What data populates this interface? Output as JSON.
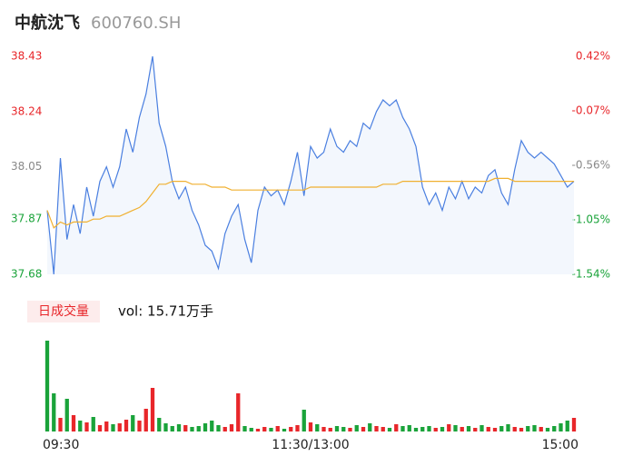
{
  "chart_data": {
    "type": "line",
    "title": "中航沈飞",
    "subtitle": "600760.SH",
    "xlabels": [
      "09:30",
      "11:30/13:00",
      "15:00"
    ],
    "ylim": [
      37.68,
      38.43
    ],
    "yticks": [
      38.43,
      38.24,
      38.05,
      37.87,
      37.68
    ],
    "y2lim": [
      -1.54,
      0.42
    ],
    "y2ticks": [
      {
        "value": 0.42,
        "label": "0.42%"
      },
      {
        "value": -0.07,
        "label": "-0.07%"
      },
      {
        "value": -0.56,
        "label": "-0.56%"
      },
      {
        "value": -1.05,
        "label": "-1.05%"
      },
      {
        "value": -1.54,
        "label": "-1.54%"
      }
    ],
    "tick_colors": [
      "#e8262a",
      "#e8262a",
      "#888888",
      "#1aa33a",
      "#1aa33a"
    ],
    "up_color": "#e8262a",
    "down_color": "#1aa33a",
    "series": [
      {
        "name": "price",
        "color": "#4a7fe0",
        "values": [
          37.9,
          37.68,
          38.08,
          37.8,
          37.92,
          37.82,
          37.98,
          37.88,
          38.0,
          38.05,
          37.98,
          38.05,
          38.18,
          38.1,
          38.22,
          38.3,
          38.43,
          38.2,
          38.12,
          38.0,
          37.94,
          37.98,
          37.9,
          37.85,
          37.78,
          37.76,
          37.7,
          37.82,
          37.88,
          37.92,
          37.8,
          37.72,
          37.9,
          37.98,
          37.95,
          37.97,
          37.92,
          38.0,
          38.1,
          37.95,
          38.12,
          38.08,
          38.1,
          38.18,
          38.12,
          38.1,
          38.14,
          38.12,
          38.2,
          38.18,
          38.24,
          38.28,
          38.26,
          38.28,
          38.22,
          38.18,
          38.12,
          37.98,
          37.92,
          37.96,
          37.9,
          37.98,
          37.94,
          38.0,
          37.94,
          37.98,
          37.96,
          38.02,
          38.04,
          37.96,
          37.92,
          38.04,
          38.14,
          38.1,
          38.08,
          38.1,
          38.08,
          38.06,
          38.02,
          37.98,
          38.0
        ]
      },
      {
        "name": "avg",
        "color": "#f0b030",
        "values": [
          37.9,
          37.84,
          37.86,
          37.85,
          37.86,
          37.86,
          37.86,
          37.87,
          37.87,
          37.88,
          37.88,
          37.88,
          37.89,
          37.9,
          37.91,
          37.93,
          37.96,
          37.99,
          37.99,
          38.0,
          38.0,
          38.0,
          37.99,
          37.99,
          37.99,
          37.98,
          37.98,
          37.98,
          37.97,
          37.97,
          37.97,
          37.97,
          37.97,
          37.97,
          37.97,
          37.97,
          37.97,
          37.97,
          37.97,
          37.97,
          37.98,
          37.98,
          37.98,
          37.98,
          37.98,
          37.98,
          37.98,
          37.98,
          37.98,
          37.98,
          37.98,
          37.99,
          37.99,
          37.99,
          38.0,
          38.0,
          38.0,
          38.0,
          38.0,
          38.0,
          38.0,
          38.0,
          38.0,
          38.0,
          38.0,
          38.0,
          38.0,
          38.0,
          38.01,
          38.01,
          38.01,
          38.0,
          38.0,
          38.0,
          38.0,
          38.0,
          38.0,
          38.0,
          38.0,
          38.0,
          38.0
        ]
      }
    ],
    "volume": {
      "legend": "日成交量",
      "label": "vol: 15.71万手",
      "ylim": [
        0,
        10500
      ],
      "values": [
        10000,
        4200,
        1500,
        3600,
        1800,
        1200,
        1000,
        1600,
        700,
        1100,
        800,
        900,
        1300,
        1800,
        1200,
        2500,
        4800,
        1500,
        900,
        600,
        800,
        700,
        500,
        600,
        900,
        1200,
        700,
        500,
        800,
        4200,
        600,
        400,
        300,
        500,
        400,
        600,
        300,
        500,
        700,
        2400,
        1000,
        800,
        500,
        400,
        600,
        500,
        400,
        700,
        500,
        900,
        600,
        500,
        400,
        800,
        600,
        700,
        400,
        500,
        600,
        400,
        500,
        800,
        700,
        500,
        600,
        400,
        700,
        500,
        400,
        600,
        800,
        500,
        400,
        600,
        700,
        500,
        400,
        600,
        900,
        1200,
        1500
      ]
    }
  }
}
